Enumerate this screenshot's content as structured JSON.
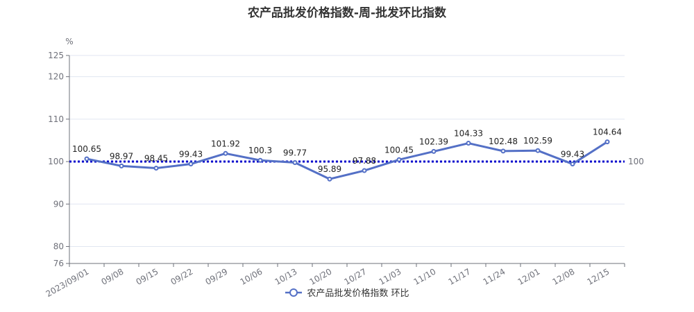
{
  "chart_data": {
    "type": "line",
    "title": "农产品批发价格指数-周-批发环比指数",
    "y_unit": "%",
    "categories": [
      "2023/09/01",
      "09/08",
      "09/15",
      "09/22",
      "09/29",
      "10/06",
      "10/13",
      "10/20",
      "10/27",
      "11/03",
      "11/10",
      "11/17",
      "11/24",
      "12/01",
      "12/08",
      "12/15"
    ],
    "series": [
      {
        "name": "农产品批发价格指数 环比",
        "color": "#5470c6",
        "values": [
          100.65,
          98.97,
          98.45,
          99.43,
          101.92,
          100.3,
          99.77,
          95.89,
          97.88,
          100.45,
          102.39,
          104.33,
          102.48,
          102.59,
          99.43,
          104.64
        ]
      }
    ],
    "ylim": [
      76,
      125
    ],
    "yticks": [
      76,
      80,
      90,
      100,
      110,
      120,
      125
    ],
    "reference_line": {
      "value": 100,
      "label": "100",
      "color": "#0000cc",
      "style": "dotted"
    },
    "grid": true,
    "legend_position": "bottom"
  }
}
